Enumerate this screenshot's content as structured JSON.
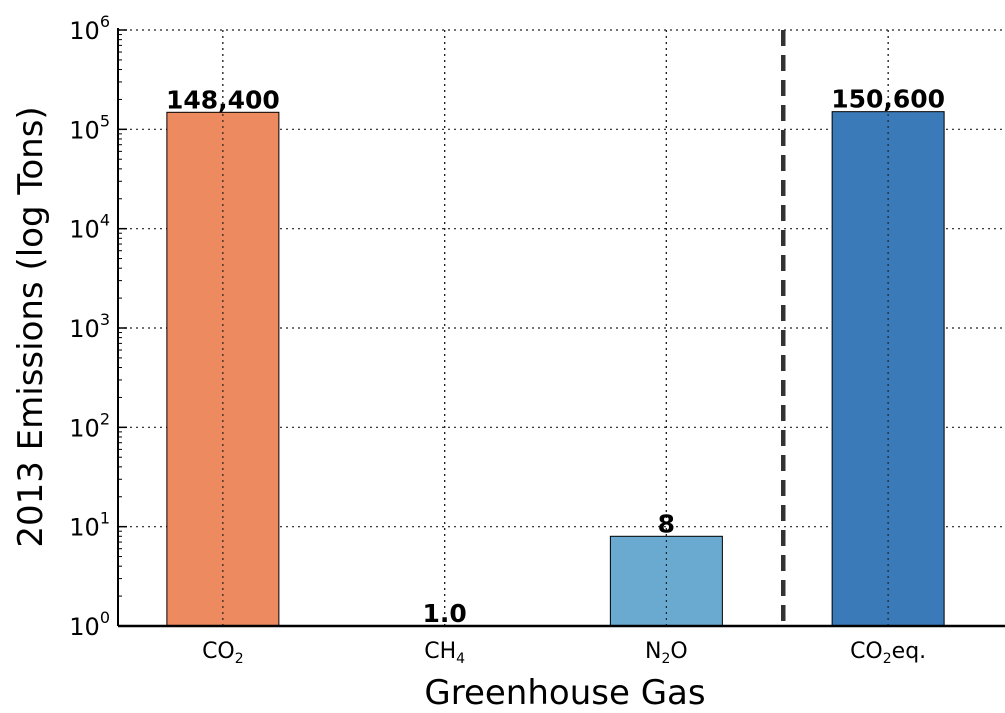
{
  "chart_data": {
    "type": "bar",
    "categories": [
      "CO2",
      "CH4",
      "N2O",
      "CO2eq."
    ],
    "category_display": [
      {
        "base": "CO",
        "sub": "2",
        "suffix": ""
      },
      {
        "base": "CH",
        "sub": "4",
        "suffix": ""
      },
      {
        "base": "N",
        "sub": "2",
        "suffix": "O"
      },
      {
        "base": "CO",
        "sub": "2",
        "suffix": "eq."
      }
    ],
    "values": [
      148400,
      1.0,
      8,
      150600
    ],
    "data_labels": [
      "148,400",
      "1.0",
      "8",
      "150,600"
    ],
    "colors": [
      "#ee8a5f",
      "#ee8a5f",
      "#6aaad0",
      "#3a7ab8"
    ],
    "xlabel": "Greenhouse Gas",
    "ylabel": "2013 Emissions (log Tons)",
    "yscale": "log",
    "ylim": [
      1,
      1000000
    ],
    "yticks": [
      {
        "base": "10",
        "exp": "0"
      },
      {
        "base": "10",
        "exp": "1"
      },
      {
        "base": "10",
        "exp": "2"
      },
      {
        "base": "10",
        "exp": "3"
      },
      {
        "base": "10",
        "exp": "4"
      },
      {
        "base": "10",
        "exp": "5"
      },
      {
        "base": "10",
        "exp": "6"
      }
    ],
    "grid": true,
    "separator_between": [
      "N2O",
      "CO2eq."
    ]
  }
}
